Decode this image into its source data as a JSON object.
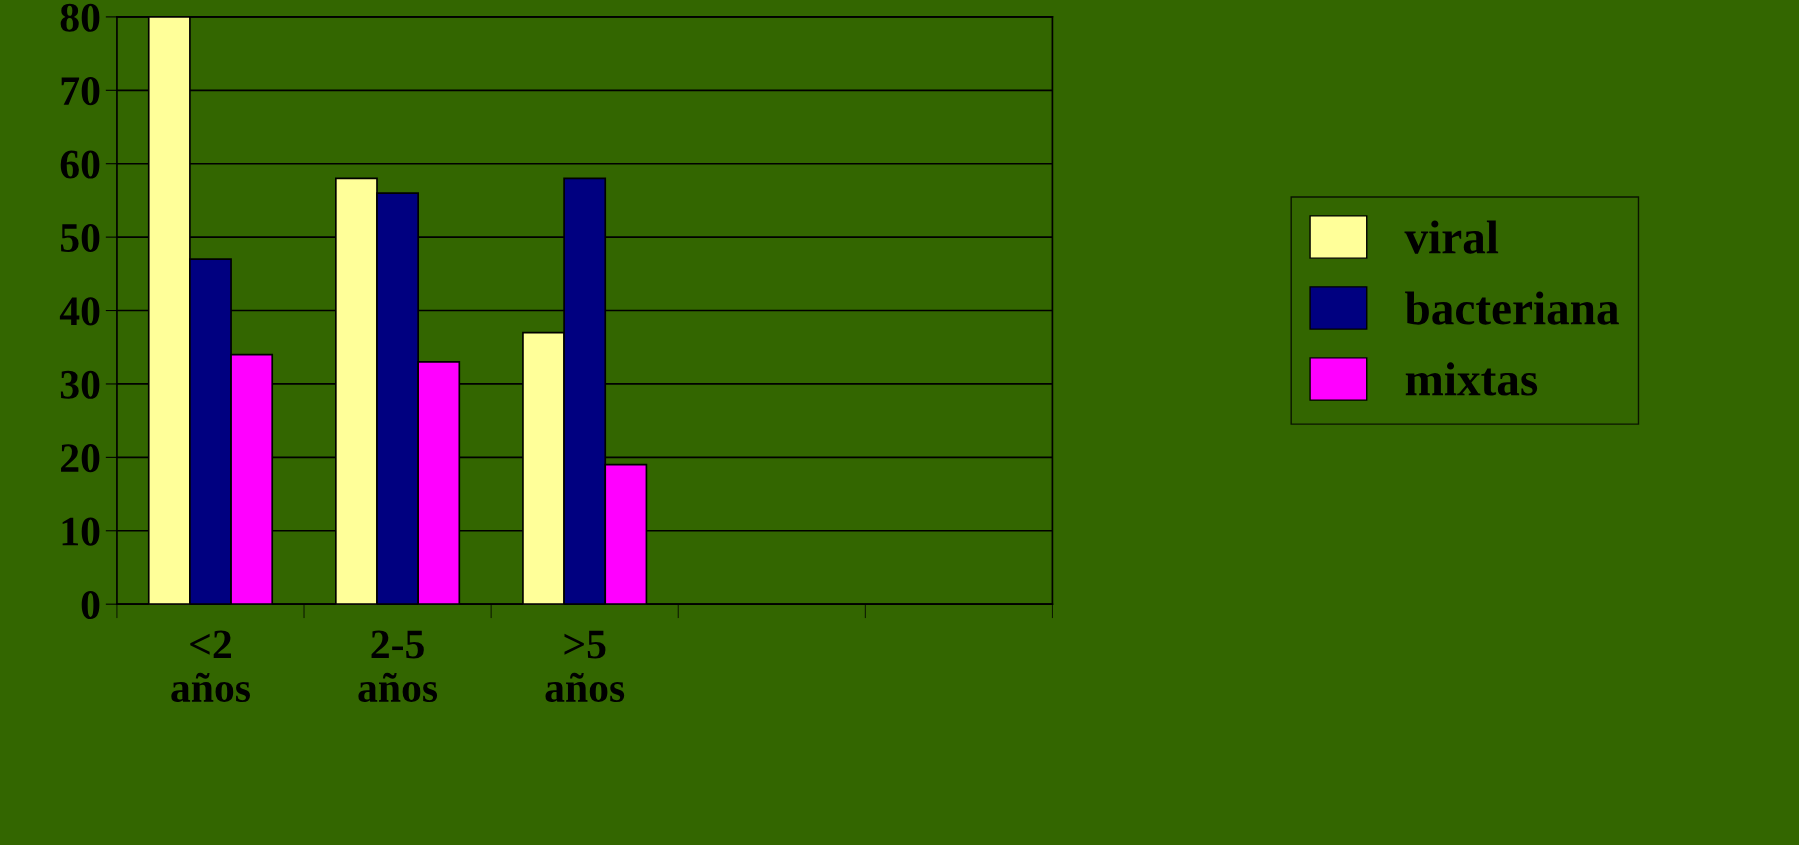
{
  "chart_data": {
    "type": "bar",
    "categories": [
      "<2\naños",
      "2-5\naños",
      ">5\naños",
      null,
      null
    ],
    "series": [
      {
        "name": "viral",
        "color": "#ffff99",
        "values": [
          80,
          58,
          37,
          null,
          null
        ]
      },
      {
        "name": "bacteriana",
        "color": "#000080",
        "values": [
          47,
          56,
          58,
          null,
          null
        ]
      },
      {
        "name": "mixtas",
        "color": "#ff00ff",
        "values": [
          34,
          33,
          19,
          null,
          null
        ]
      }
    ],
    "ylim": [
      0,
      80
    ],
    "yticks": [
      0,
      10,
      20,
      30,
      40,
      50,
      60,
      70,
      80
    ],
    "grid": "y",
    "legend": "right"
  }
}
